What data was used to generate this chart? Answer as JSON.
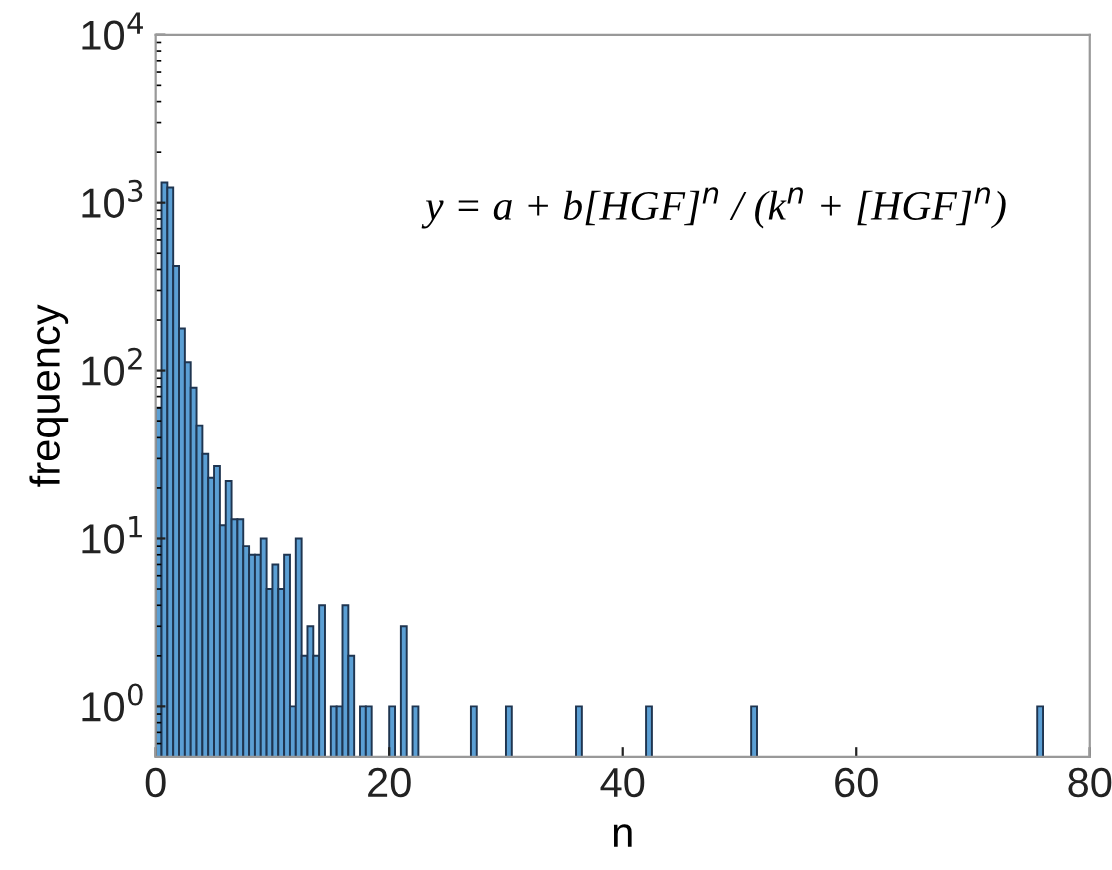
{
  "chart_data": {
    "type": "histogram",
    "xlabel": "n",
    "ylabel": "frequency",
    "annotations": [
      "y = a + b[HGF]$^{n}$ / (k$^{n}$ + [HGF]$^{n}$)"
    ],
    "bins": [
      0,
      0.5,
      1,
      1.5,
      2,
      2.5,
      3,
      3.5,
      4,
      4.5,
      5,
      5.5,
      6,
      6.5,
      7,
      7.5,
      8,
      8.5,
      9,
      9.5,
      10,
      10.5,
      11,
      11.5,
      12,
      12.5,
      13,
      13.5,
      14,
      14.5,
      15,
      15.5,
      16,
      16.5,
      17,
      17.5,
      18,
      18.5,
      19,
      19.5,
      20,
      20.5,
      21,
      21.5,
      22,
      22.5,
      23,
      23.5,
      24,
      24.5,
      25,
      25.5,
      26,
      26.5,
      27,
      27.5,
      28,
      28.5,
      29,
      29.5,
      30,
      30.5,
      31,
      31.5,
      32,
      32.5,
      33,
      33.5,
      34,
      34.5,
      35,
      35.5,
      36,
      36.5,
      37,
      37.5,
      38,
      38.5,
      39,
      39.5,
      40,
      40.5,
      41,
      41.5,
      42,
      42.5,
      43,
      43.5,
      44,
      44.5,
      45,
      45.5,
      46,
      46.5,
      47,
      47.5,
      48,
      48.5,
      49,
      49.5,
      50,
      50.5,
      51,
      51.5,
      52,
      52.5,
      53,
      53.5,
      54,
      54.5,
      55,
      55.5,
      56,
      56.5,
      57,
      57.5,
      58,
      58.5,
      59,
      59.5,
      60,
      60.5,
      61,
      61.5,
      62,
      62.5,
      63,
      63.5,
      64,
      64.5,
      65,
      65.5,
      66,
      66.5,
      67,
      67.5,
      68,
      68.5,
      69,
      69.5,
      70,
      70.5,
      71,
      71.5,
      72,
      72.5,
      73,
      73.5,
      74,
      74.5,
      75,
      75.5,
      76
    ],
    "values": [
      60,
      1320,
      1230,
      420,
      178,
      112,
      79,
      47,
      32,
      23,
      27,
      12,
      22,
      13,
      13,
      9,
      8,
      8,
      10,
      5,
      7,
      5,
      8,
      1,
      10,
      2,
      3,
      2,
      4,
      null,
      1,
      1,
      4,
      2,
      null,
      1,
      1,
      null,
      null,
      null,
      1,
      null,
      3,
      null,
      1,
      null,
      null,
      null,
      null,
      null,
      null,
      null,
      null,
      null,
      1,
      null,
      null,
      null,
      null,
      null,
      1,
      null,
      null,
      null,
      null,
      null,
      null,
      null,
      null,
      null,
      null,
      null,
      1,
      null,
      null,
      null,
      null,
      null,
      null,
      null,
      null,
      null,
      null,
      null,
      1,
      null,
      null,
      null,
      null,
      null,
      null,
      null,
      null,
      null,
      null,
      null,
      null,
      null,
      null,
      null,
      null,
      null,
      1,
      null,
      null,
      null,
      null,
      null,
      null,
      null,
      null,
      null,
      null,
      null,
      null,
      null,
      null,
      null,
      null,
      null,
      null,
      null,
      null,
      null,
      null,
      null,
      null,
      null,
      null,
      null,
      null,
      null,
      null,
      null,
      null,
      null,
      null,
      null,
      null,
      null,
      null,
      null,
      null,
      null,
      null,
      null,
      null,
      null,
      null,
      null,
      null,
      1
    ],
    "color": "#5b9fd4",
    "log": "y",
    "xlim": [
      0,
      80
    ],
    "ylim": [
      0.5,
      10000
    ],
    "xticks": [
      0,
      20,
      40,
      60,
      80
    ],
    "yticks": [
      {
        "value": 1,
        "label": "10$^{0}$"
      },
      {
        "value": 10,
        "label": "10$^{1}$"
      },
      {
        "value": 100,
        "label": "10$^{2}$"
      },
      {
        "value": 1000,
        "label": "10$^{3}$"
      },
      {
        "value": 10000,
        "label": "10$^{4}$"
      }
    ],
    "grid": false
  }
}
